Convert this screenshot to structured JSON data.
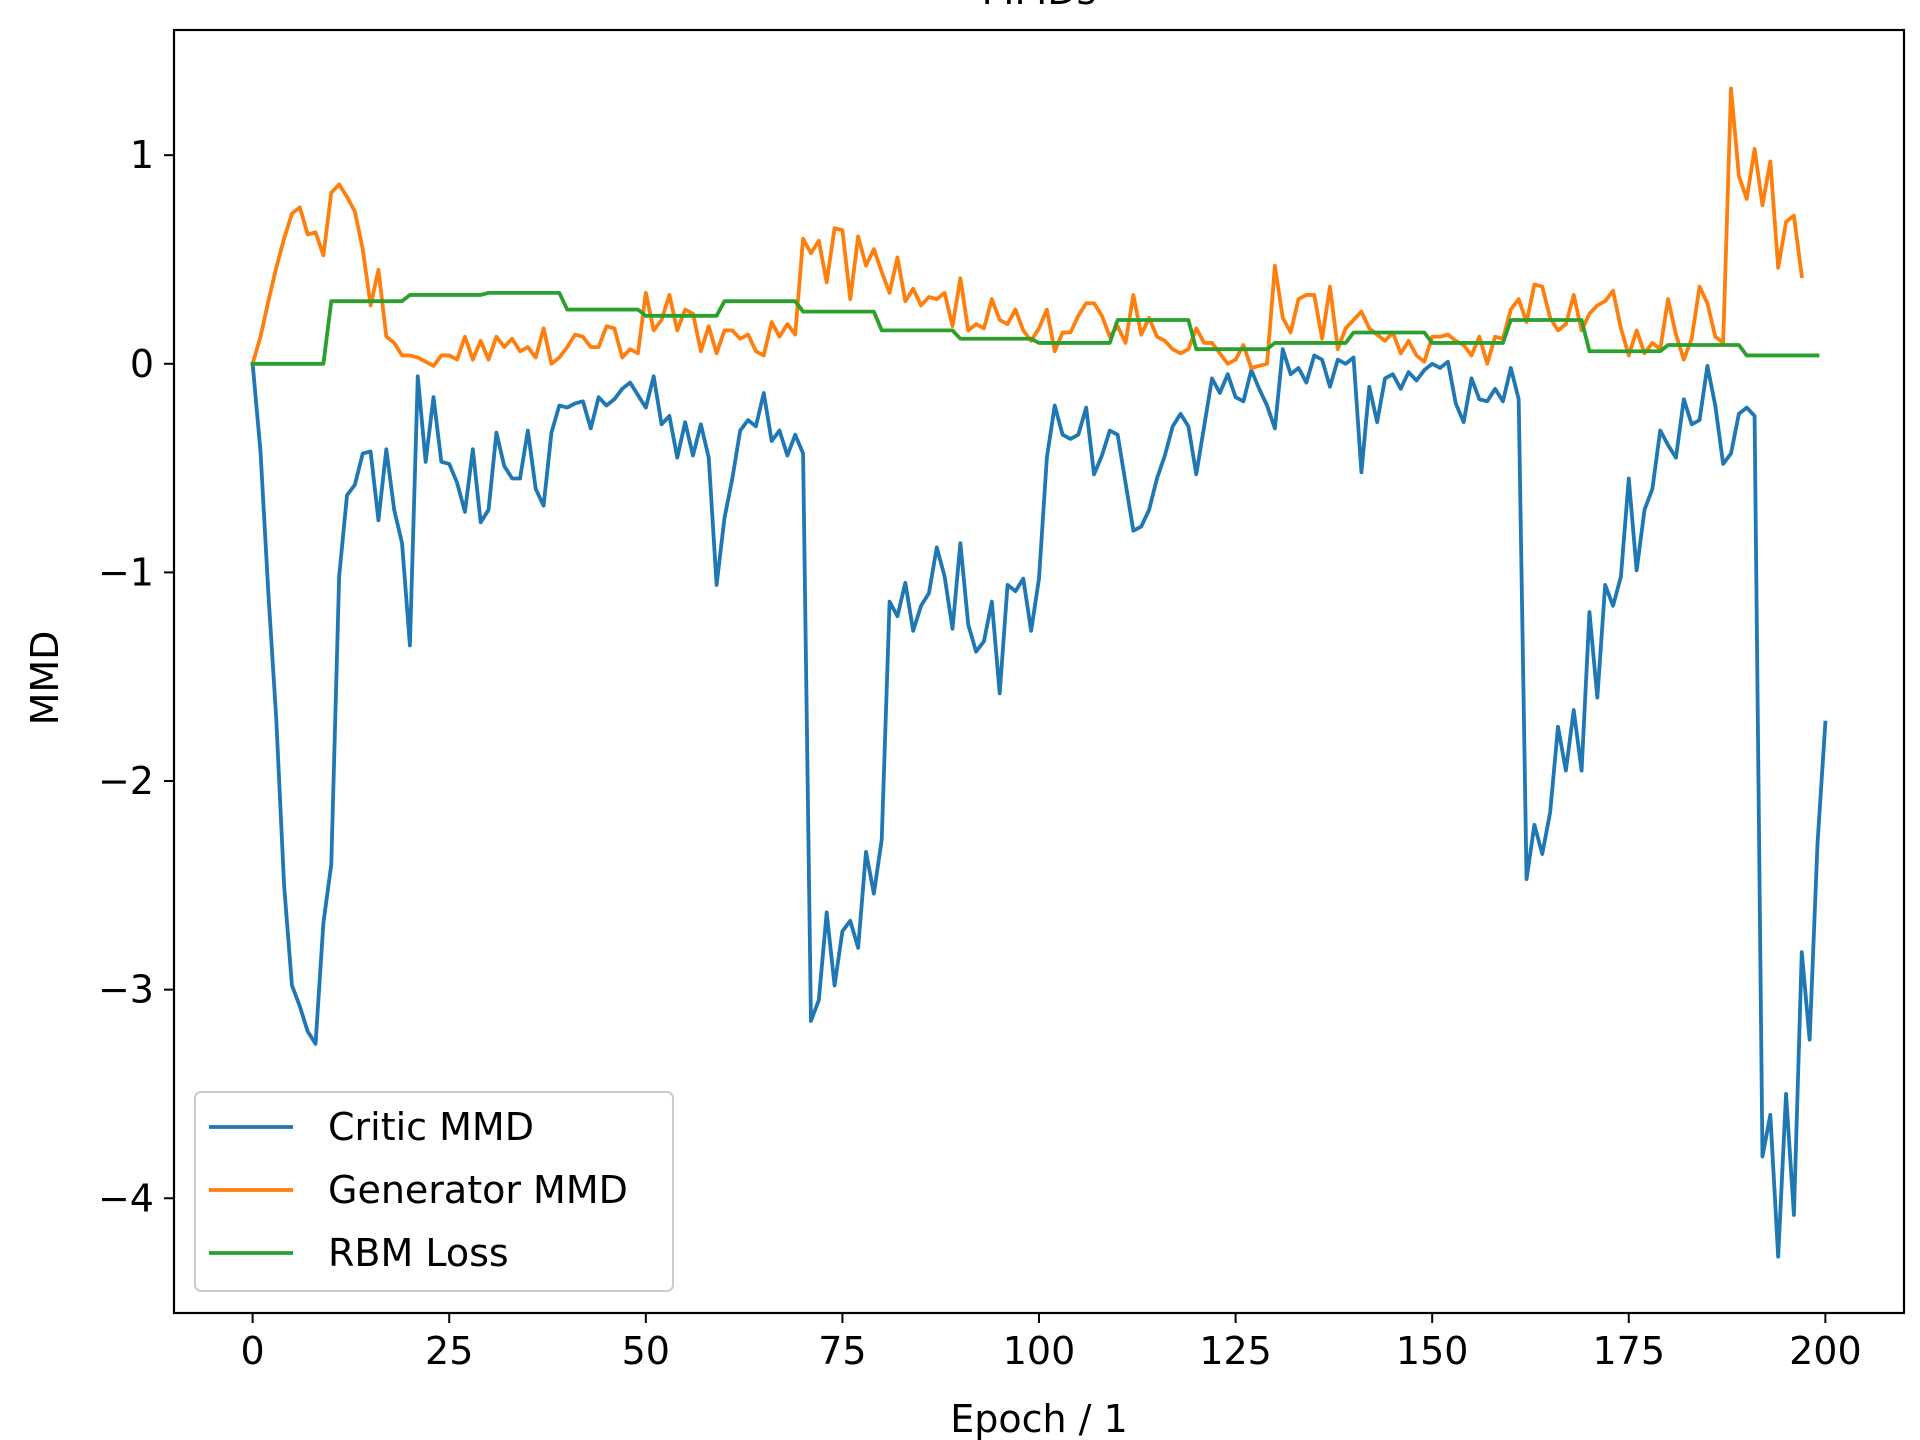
{
  "chart_data": {
    "type": "line",
    "title": "MMDs",
    "xlabel": "Epoch / 1",
    "ylabel": "MMD",
    "xlim": [
      -10,
      210
    ],
    "ylim": [
      -4.55,
      1.6
    ],
    "xticks": [
      0,
      25,
      50,
      75,
      100,
      125,
      150,
      175,
      200
    ],
    "xtick_labels": [
      "0",
      "25",
      "50",
      "75",
      "100",
      "125",
      "150",
      "175",
      "200"
    ],
    "yticks": [
      -4,
      -3,
      -2,
      -1,
      0,
      1
    ],
    "ytick_labels": [
      "−4",
      "−3",
      "−2",
      "−1",
      "0",
      "1"
    ],
    "grid": false,
    "legend_position": "lower-left",
    "x_start": 0,
    "series": [
      {
        "name": "Critic MMD",
        "color": "#1f77b4",
        "values": [
          0.0,
          -0.42,
          -1.1,
          -1.7,
          -2.5,
          -2.98,
          -3.08,
          -3.2,
          -3.26,
          -2.68,
          -2.4,
          -1.02,
          -0.63,
          -0.58,
          -0.43,
          -0.42,
          -0.75,
          -0.41,
          -0.7,
          -0.86,
          -1.35,
          -0.06,
          -0.47,
          -0.16,
          -0.47,
          -0.48,
          -0.57,
          -0.71,
          -0.41,
          -0.76,
          -0.7,
          -0.33,
          -0.49,
          -0.55,
          -0.55,
          -0.32,
          -0.6,
          -0.68,
          -0.33,
          -0.2,
          -0.21,
          -0.19,
          -0.18,
          -0.31,
          -0.16,
          -0.2,
          -0.17,
          -0.12,
          -0.09,
          -0.15,
          -0.21,
          -0.06,
          -0.29,
          -0.25,
          -0.45,
          -0.28,
          -0.44,
          -0.29,
          -0.45,
          -1.06,
          -0.74,
          -0.55,
          -0.32,
          -0.27,
          -0.3,
          -0.14,
          -0.37,
          -0.32,
          -0.44,
          -0.34,
          -0.43,
          -3.15,
          -3.05,
          -2.63,
          -2.98,
          -2.72,
          -2.67,
          -2.8,
          -2.34,
          -2.54,
          -2.28,
          -1.14,
          -1.21,
          -1.05,
          -1.28,
          -1.16,
          -1.1,
          -0.88,
          -1.02,
          -1.27,
          -0.86,
          -1.25,
          -1.38,
          -1.33,
          -1.14,
          -1.58,
          -1.06,
          -1.09,
          -1.03,
          -1.28,
          -1.03,
          -0.45,
          -0.2,
          -0.34,
          -0.36,
          -0.34,
          -0.21,
          -0.53,
          -0.44,
          -0.32,
          -0.34,
          -0.57,
          -0.8,
          -0.78,
          -0.7,
          -0.55,
          -0.44,
          -0.3,
          -0.24,
          -0.3,
          -0.53,
          -0.3,
          -0.07,
          -0.14,
          -0.05,
          -0.16,
          -0.18,
          -0.03,
          -0.12,
          -0.2,
          -0.31,
          0.07,
          -0.05,
          -0.02,
          -0.09,
          0.04,
          0.02,
          -0.11,
          0.02,
          0.0,
          0.03,
          -0.52,
          -0.11,
          -0.28,
          -0.07,
          -0.05,
          -0.12,
          -0.04,
          -0.08,
          -0.03,
          0.0,
          -0.02,
          0.01,
          -0.19,
          -0.28,
          -0.07,
          -0.17,
          -0.18,
          -0.12,
          -0.18,
          -0.02,
          -0.17,
          -2.47,
          -2.21,
          -2.35,
          -2.15,
          -1.74,
          -1.95,
          -1.66,
          -1.95,
          -1.19,
          -1.6,
          -1.06,
          -1.16,
          -1.02,
          -0.55,
          -0.99,
          -0.7,
          -0.6,
          -0.32,
          -0.39,
          -0.45,
          -0.17,
          -0.29,
          -0.27,
          -0.01,
          -0.2,
          -0.48,
          -0.43,
          -0.24,
          -0.21,
          -0.25,
          -3.8,
          -3.6,
          -4.28,
          -3.5,
          -4.08,
          -2.82,
          -3.24,
          -2.3,
          -1.72
        ]
      },
      {
        "name": "Generator MMD",
        "color": "#ff7f0e",
        "values": [
          0.0,
          0.13,
          0.3,
          0.46,
          0.6,
          0.72,
          0.75,
          0.62,
          0.63,
          0.52,
          0.82,
          0.86,
          0.8,
          0.73,
          0.55,
          0.28,
          0.45,
          0.13,
          0.1,
          0.04,
          0.04,
          0.03,
          0.01,
          -0.01,
          0.04,
          0.04,
          0.02,
          0.13,
          0.02,
          0.11,
          0.02,
          0.13,
          0.08,
          0.12,
          0.06,
          0.08,
          0.03,
          0.17,
          0.0,
          0.03,
          0.08,
          0.14,
          0.13,
          0.08,
          0.08,
          0.18,
          0.17,
          0.03,
          0.07,
          0.05,
          0.34,
          0.16,
          0.21,
          0.33,
          0.16,
          0.26,
          0.24,
          0.06,
          0.18,
          0.05,
          0.16,
          0.16,
          0.12,
          0.14,
          0.06,
          0.04,
          0.2,
          0.13,
          0.19,
          0.14,
          0.6,
          0.53,
          0.59,
          0.39,
          0.65,
          0.64,
          0.31,
          0.61,
          0.47,
          0.55,
          0.44,
          0.34,
          0.51,
          0.3,
          0.36,
          0.28,
          0.32,
          0.31,
          0.34,
          0.18,
          0.41,
          0.16,
          0.19,
          0.17,
          0.31,
          0.21,
          0.19,
          0.26,
          0.16,
          0.11,
          0.17,
          0.26,
          0.06,
          0.15,
          0.15,
          0.23,
          0.29,
          0.29,
          0.23,
          0.13,
          0.18,
          0.1,
          0.33,
          0.14,
          0.22,
          0.13,
          0.11,
          0.07,
          0.05,
          0.07,
          0.17,
          0.1,
          0.1,
          0.05,
          0.0,
          0.02,
          0.09,
          -0.02,
          -0.01,
          0.0,
          0.47,
          0.22,
          0.15,
          0.31,
          0.33,
          0.33,
          0.12,
          0.37,
          0.07,
          0.17,
          0.21,
          0.25,
          0.17,
          0.14,
          0.11,
          0.15,
          0.05,
          0.11,
          0.04,
          0.01,
          0.13,
          0.13,
          0.14,
          0.11,
          0.09,
          0.04,
          0.13,
          0.0,
          0.13,
          0.12,
          0.26,
          0.31,
          0.2,
          0.38,
          0.37,
          0.22,
          0.16,
          0.19,
          0.33,
          0.16,
          0.24,
          0.28,
          0.3,
          0.35,
          0.17,
          0.04,
          0.16,
          0.05,
          0.1,
          0.07,
          0.31,
          0.14,
          0.02,
          0.12,
          0.37,
          0.29,
          0.13,
          0.1,
          1.32,
          0.9,
          0.79,
          1.03,
          0.76,
          0.97,
          0.46,
          0.68,
          0.71,
          0.42
        ]
      },
      {
        "name": "RBM Loss",
        "color": "#2ca02c",
        "values": [
          0.0,
          0.0,
          0.0,
          0.0,
          0.0,
          0.0,
          0.0,
          0.0,
          0.0,
          0.0,
          0.3,
          0.3,
          0.3,
          0.3,
          0.3,
          0.3,
          0.3,
          0.3,
          0.3,
          0.3,
          0.33,
          0.33,
          0.33,
          0.33,
          0.33,
          0.33,
          0.33,
          0.33,
          0.33,
          0.33,
          0.34,
          0.34,
          0.34,
          0.34,
          0.34,
          0.34,
          0.34,
          0.34,
          0.34,
          0.34,
          0.26,
          0.26,
          0.26,
          0.26,
          0.26,
          0.26,
          0.26,
          0.26,
          0.26,
          0.26,
          0.23,
          0.23,
          0.23,
          0.23,
          0.23,
          0.23,
          0.23,
          0.23,
          0.23,
          0.23,
          0.3,
          0.3,
          0.3,
          0.3,
          0.3,
          0.3,
          0.3,
          0.3,
          0.3,
          0.3,
          0.25,
          0.25,
          0.25,
          0.25,
          0.25,
          0.25,
          0.25,
          0.25,
          0.25,
          0.25,
          0.16,
          0.16,
          0.16,
          0.16,
          0.16,
          0.16,
          0.16,
          0.16,
          0.16,
          0.16,
          0.12,
          0.12,
          0.12,
          0.12,
          0.12,
          0.12,
          0.12,
          0.12,
          0.12,
          0.12,
          0.1,
          0.1,
          0.1,
          0.1,
          0.1,
          0.1,
          0.1,
          0.1,
          0.1,
          0.1,
          0.21,
          0.21,
          0.21,
          0.21,
          0.21,
          0.21,
          0.21,
          0.21,
          0.21,
          0.21,
          0.07,
          0.07,
          0.07,
          0.07,
          0.07,
          0.07,
          0.07,
          0.07,
          0.07,
          0.07,
          0.1,
          0.1,
          0.1,
          0.1,
          0.1,
          0.1,
          0.1,
          0.1,
          0.1,
          0.1,
          0.15,
          0.15,
          0.15,
          0.15,
          0.15,
          0.15,
          0.15,
          0.15,
          0.15,
          0.15,
          0.1,
          0.1,
          0.1,
          0.1,
          0.1,
          0.1,
          0.1,
          0.1,
          0.1,
          0.1,
          0.21,
          0.21,
          0.21,
          0.21,
          0.21,
          0.21,
          0.21,
          0.21,
          0.21,
          0.21,
          0.06,
          0.06,
          0.06,
          0.06,
          0.06,
          0.06,
          0.06,
          0.06,
          0.06,
          0.06,
          0.09,
          0.09,
          0.09,
          0.09,
          0.09,
          0.09,
          0.09,
          0.09,
          0.09,
          0.09,
          0.04,
          0.04,
          0.04,
          0.04,
          0.04,
          0.04,
          0.04,
          0.04,
          0.04,
          0.04
        ]
      }
    ]
  }
}
